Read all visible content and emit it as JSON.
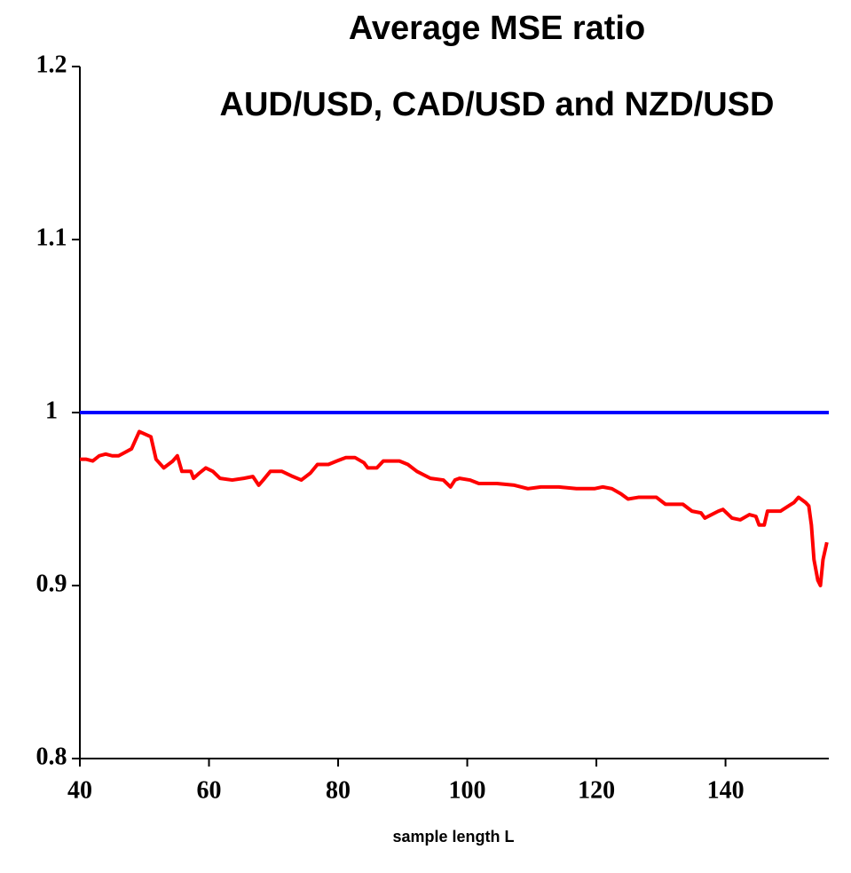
{
  "chart_data": {
    "type": "line",
    "title": [
      "Average MSE ratio",
      "AUD/USD, CAD/USD and NZD/USD"
    ],
    "x_label": "sample length L",
    "xlim": [
      40,
      156
    ],
    "xticks": [
      40,
      60,
      80,
      100,
      120,
      140
    ],
    "ylim": [
      0.8,
      1.2
    ],
    "yticks": [
      0.8,
      0.9,
      1,
      1.1,
      1.2
    ],
    "grid": false,
    "series": [
      {
        "color": "#0000ff",
        "x": [
          40,
          156
        ],
        "values": [
          1,
          1
        ]
      },
      {
        "color": "#ff0000",
        "x": [
          40,
          41,
          42,
          43,
          44,
          45,
          46,
          47,
          48,
          49.2,
          51,
          51.8,
          53,
          54.4,
          55.1,
          55.8,
          57.2,
          57.6,
          58.5,
          59.5,
          60.6,
          61.7,
          63.6,
          65.4,
          66.8,
          67.7,
          68.4,
          69.5,
          71.3,
          73,
          74.3,
          75.7,
          76.8,
          78.5,
          79.8,
          81.2,
          82.6,
          84,
          84.6,
          86,
          87,
          88,
          89.5,
          90.8,
          92.2,
          94.3,
          96.3,
          97.4,
          98.1,
          98.8,
          100.4,
          101.8,
          104.6,
          107.3,
          109.4,
          111.4,
          114.2,
          116.9,
          119.7,
          121,
          122.4,
          123.8,
          124.9,
          126.5,
          129.3,
          130.7,
          133.4,
          134.8,
          136.2,
          136.8,
          138.9,
          139.6,
          141,
          142.3,
          143.7,
          144.7,
          145.2,
          146,
          146.5,
          148.5,
          150.6,
          151.3,
          152.4,
          152.9,
          153.3,
          153.7,
          154.3,
          154.7,
          155.1,
          155.7
        ],
        "values": [
          0.973,
          0.973,
          0.972,
          0.975,
          0.976,
          0.975,
          0.975,
          0.977,
          0.979,
          0.989,
          0.986,
          0.973,
          0.968,
          0.972,
          0.975,
          0.966,
          0.966,
          0.962,
          0.965,
          0.968,
          0.966,
          0.962,
          0.961,
          0.962,
          0.963,
          0.958,
          0.961,
          0.966,
          0.966,
          0.963,
          0.961,
          0.965,
          0.97,
          0.97,
          0.972,
          0.974,
          0.974,
          0.971,
          0.968,
          0.968,
          0.972,
          0.972,
          0.972,
          0.97,
          0.966,
          0.962,
          0.961,
          0.957,
          0.961,
          0.962,
          0.961,
          0.959,
          0.959,
          0.958,
          0.956,
          0.957,
          0.957,
          0.956,
          0.956,
          0.957,
          0.956,
          0.953,
          0.95,
          0.951,
          0.951,
          0.947,
          0.947,
          0.943,
          0.942,
          0.939,
          0.943,
          0.944,
          0.939,
          0.938,
          0.941,
          0.94,
          0.935,
          0.935,
          0.943,
          0.943,
          0.948,
          0.951,
          0.948,
          0.946,
          0.935,
          0.915,
          0.903,
          0.9,
          0.915,
          0.925
        ]
      }
    ]
  }
}
